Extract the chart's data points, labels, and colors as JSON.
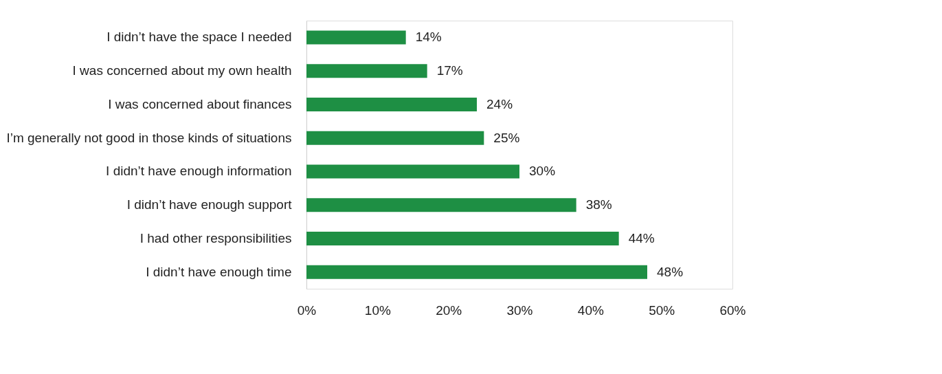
{
  "chart_data": {
    "type": "bar",
    "orientation": "horizontal",
    "categories": [
      "I didn’t have the space I needed",
      "I was concerned about my own health",
      "I was concerned about finances",
      "I’m generally not good in those kinds of situations",
      "I didn’t have enough information",
      "I didn’t have enough support",
      "I had other responsibilities",
      "I didn’t have enough time"
    ],
    "values": [
      14,
      17,
      24,
      25,
      30,
      38,
      44,
      48
    ],
    "value_labels": [
      "14%",
      "17%",
      "24%",
      "25%",
      "30%",
      "38%",
      "44%",
      "48%"
    ],
    "color": "#1e8f44",
    "xlim": [
      0,
      60
    ],
    "xticks": [
      {
        "value": 0,
        "label": "0%"
      },
      {
        "value": 10,
        "label": "10%"
      },
      {
        "value": 20,
        "label": "20%"
      },
      {
        "value": 30,
        "label": "30%"
      },
      {
        "value": 40,
        "label": "40%"
      },
      {
        "value": 50,
        "label": "50%"
      },
      {
        "value": 60,
        "label": "60%"
      }
    ],
    "grid": false
  }
}
